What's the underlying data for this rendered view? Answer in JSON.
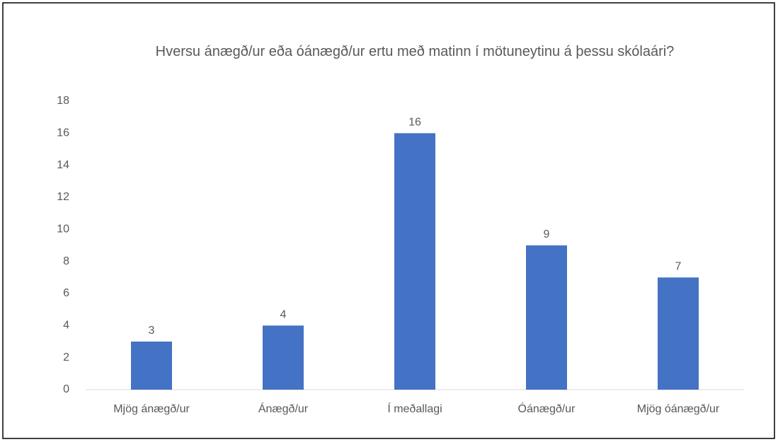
{
  "chart_data": {
    "type": "bar",
    "title": "Hversu ánægð/ur eða óánægð/ur ertu með matinn í mötuneytinu á þessu skólaári?",
    "categories": [
      "Mjög ánægð/ur",
      "Ánægð/ur",
      "Í meðallagi",
      "Óánægð/ur",
      "Mjög óánægð/ur"
    ],
    "values": [
      3,
      4,
      16,
      9,
      7
    ],
    "color": "#4472c4",
    "ylim": [
      0,
      18
    ],
    "yticks": [
      0,
      2,
      4,
      6,
      8,
      10,
      12,
      14,
      16,
      18
    ],
    "grid": false
  }
}
